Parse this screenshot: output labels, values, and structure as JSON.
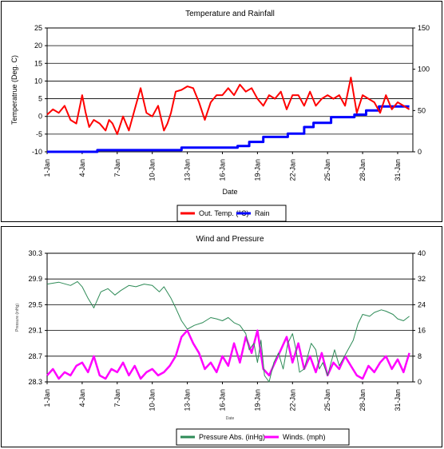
{
  "chart_data": [
    {
      "type": "line",
      "title": "Temperature and Rainfall",
      "xlabel": "Date",
      "ylabel": "Temperatrue (Deg. C)",
      "x_tick_labels": [
        "1-Jan",
        "4-Jan",
        "7-Jan",
        "10-Jan",
        "13-Jan",
        "16-Jan",
        "19-Jan",
        "22-Jan",
        "25-Jan",
        "28-Jan",
        "31-Jan"
      ],
      "ylim": [
        -10,
        25
      ],
      "y_ticks": [
        "25",
        "20",
        "15",
        "10",
        "5",
        "0",
        "-5",
        "-10"
      ],
      "y2lim": [
        0,
        150
      ],
      "y2_ticks": [
        "150",
        "100",
        "50",
        "0"
      ],
      "grid": true,
      "legend_position": "bottom-center",
      "series": [
        {
          "name": "Out. Temp. (°C)",
          "color": "#ff0000",
          "axis": "left",
          "x": [
            1,
            1.5,
            2,
            2.5,
            3,
            3.5,
            4,
            4.3,
            4.6,
            5,
            5.5,
            6,
            6.3,
            6.6,
            7,
            7.5,
            8,
            8.5,
            9,
            9.5,
            10,
            10.5,
            11,
            11.3,
            11.6,
            12,
            12.5,
            13,
            13.5,
            14,
            14.5,
            15,
            15.5,
            16,
            16.5,
            17,
            17.5,
            18,
            18.5,
            19,
            19.5,
            20,
            20.5,
            21,
            21.5,
            22,
            22.5,
            23,
            23.5,
            24,
            24.5,
            25,
            25.5,
            26,
            26.5,
            27,
            27.5,
            28,
            28.5,
            29,
            29.5,
            30,
            30.5,
            31,
            31.5,
            32
          ],
          "y": [
            0.5,
            2,
            1,
            3,
            -1,
            -2,
            6,
            1,
            -3,
            -1,
            -2,
            -4,
            -1,
            -2,
            -5,
            0,
            -4,
            2,
            8,
            1,
            0,
            3,
            -4,
            -2,
            1,
            7,
            7.5,
            8.5,
            8,
            4,
            -1,
            4,
            6,
            6,
            8,
            6,
            9,
            7,
            8,
            5,
            3,
            6,
            5,
            7,
            2,
            6,
            6,
            3,
            7,
            3,
            5,
            6,
            5,
            6,
            3,
            11,
            1,
            6,
            5,
            4,
            1,
            6,
            2,
            4,
            3,
            2
          ]
        },
        {
          "name": "Rain",
          "color": "#0000ff",
          "axis": "right",
          "x": [
            1,
            5.3,
            5.3,
            12.5,
            12.5,
            17.3,
            17.3,
            18.3,
            18.3,
            19.5,
            19.5,
            21.6,
            21.6,
            23,
            23,
            23.8,
            23.8,
            25.3,
            25.3,
            27.3,
            27.3,
            28.3,
            28.3,
            29.4,
            29.4,
            32
          ],
          "y": [
            0,
            0,
            2,
            2,
            5,
            5,
            7,
            7,
            12,
            12,
            18,
            18,
            22,
            22,
            30,
            30,
            35,
            35,
            42,
            42,
            45,
            45,
            50,
            50,
            55,
            55
          ]
        }
      ]
    },
    {
      "type": "line",
      "title": "Wind and Pressure",
      "xlabel": "Date",
      "ylabel": "Pressure (inHg)",
      "x_tick_labels": [
        "1-Jan",
        "4-Jan",
        "7-Jan",
        "10-Jan",
        "13-Jan",
        "16-Jan",
        "19-Jan",
        "22-Jan",
        "25-Jan",
        "28-Jan",
        "31-Jan"
      ],
      "ylim": [
        28.3,
        30.3
      ],
      "y_ticks": [
        "30.3",
        "29.9",
        "29.5",
        "29.1",
        "28.7",
        "28.3"
      ],
      "y2lim": [
        0,
        40
      ],
      "y2_ticks": [
        "40",
        "32",
        "24",
        "16",
        "8",
        "0"
      ],
      "grid": true,
      "legend_position": "bottom-center",
      "series": [
        {
          "name": "Pressure Abs. (inHg)",
          "color": "#2e8b57",
          "axis": "left",
          "x": [
            1,
            2,
            3,
            3.6,
            4,
            4.5,
            5,
            5.6,
            6.2,
            6.8,
            7.3,
            8,
            8.6,
            9.3,
            10,
            10.6,
            11,
            11.6,
            12,
            12.5,
            13,
            13.6,
            14.3,
            15,
            15.5,
            16,
            16.5,
            17,
            17.5,
            18,
            18.3,
            18.7,
            19,
            19.3,
            19.6,
            20,
            20.4,
            20.8,
            21.2,
            21.6,
            22,
            22.3,
            22.6,
            23,
            23.3,
            23.6,
            24,
            24.3,
            24.6,
            25,
            25.3,
            25.6,
            26,
            26.6,
            27.2,
            27.6,
            28,
            28.6,
            29,
            29.6,
            30,
            30.6,
            31,
            31.5,
            32
          ],
          "y": [
            29.82,
            29.85,
            29.8,
            29.86,
            29.78,
            29.6,
            29.45,
            29.7,
            29.75,
            29.65,
            29.72,
            29.8,
            29.78,
            29.82,
            29.8,
            29.7,
            29.78,
            29.6,
            29.45,
            29.25,
            29.12,
            29.18,
            29.22,
            29.3,
            29.28,
            29.25,
            29.3,
            29.22,
            29.18,
            29.05,
            28.8,
            28.9,
            28.6,
            28.95,
            28.4,
            28.3,
            28.6,
            28.75,
            28.5,
            28.9,
            29.05,
            28.8,
            28.45,
            28.5,
            28.7,
            28.9,
            28.8,
            28.5,
            28.6,
            28.4,
            28.6,
            28.8,
            28.55,
            28.75,
            28.95,
            29.2,
            29.35,
            29.32,
            29.38,
            29.42,
            29.4,
            29.35,
            29.28,
            29.25,
            29.32
          ]
        },
        {
          "name": "Winds. (mph)",
          "color": "#ff00ff",
          "axis": "right",
          "x": [
            1,
            1.5,
            2,
            2.5,
            3,
            3.5,
            4,
            4.5,
            5,
            5.5,
            6,
            6.5,
            7,
            7.5,
            8,
            8.5,
            9,
            9.5,
            10,
            10.5,
            11,
            11.5,
            12,
            12.5,
            13,
            13.5,
            14,
            14.5,
            15,
            15.5,
            16,
            16.5,
            17,
            17.5,
            18,
            18.5,
            19,
            19.5,
            20,
            20.5,
            21,
            21.5,
            22,
            22.5,
            23,
            23.5,
            24,
            24.5,
            25,
            25.5,
            26,
            26.5,
            27,
            27.5,
            28,
            28.5,
            29,
            29.5,
            30,
            30.5,
            31,
            31.5,
            32
          ],
          "y": [
            2,
            4,
            1,
            3,
            2,
            5,
            6,
            3,
            8,
            2,
            1,
            4,
            3,
            6,
            2,
            5,
            1,
            3,
            4,
            2,
            3,
            5,
            8,
            14,
            16,
            12,
            9,
            4,
            6,
            3,
            8,
            5,
            12,
            6,
            14,
            9,
            16,
            4,
            2,
            6,
            10,
            14,
            6,
            12,
            4,
            8,
            3,
            9,
            2,
            6,
            4,
            8,
            5,
            2,
            1,
            5,
            3,
            6,
            8,
            4,
            7,
            3,
            9
          ]
        }
      ]
    }
  ]
}
